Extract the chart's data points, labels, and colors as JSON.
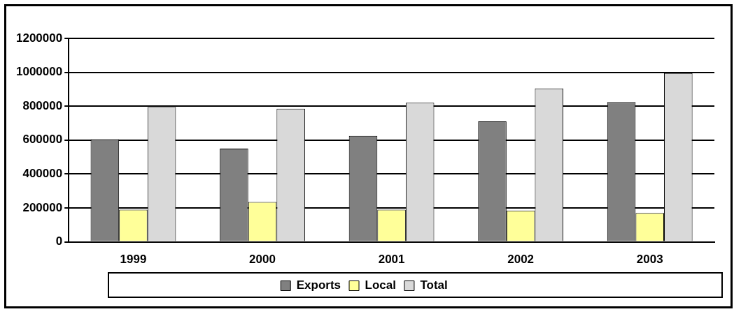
{
  "chart_data": {
    "type": "bar",
    "categories": [
      "1999",
      "2000",
      "2001",
      "2002",
      "2003"
    ],
    "series": [
      {
        "name": "Exports",
        "color": "#808080",
        "values": [
          605000,
          550000,
          625000,
          710000,
          825000
        ]
      },
      {
        "name": "Local",
        "color": "#ffff99",
        "values": [
          190000,
          235000,
          190000,
          185000,
          170000
        ]
      },
      {
        "name": "Total",
        "color": "#d9d9d9",
        "values": [
          795000,
          785000,
          820000,
          905000,
          995000
        ]
      }
    ],
    "ylim": [
      0,
      1200000
    ],
    "yticks": [
      0,
      200000,
      400000,
      600000,
      800000,
      1000000,
      1200000
    ],
    "grid": "y",
    "legend": "bottom"
  }
}
